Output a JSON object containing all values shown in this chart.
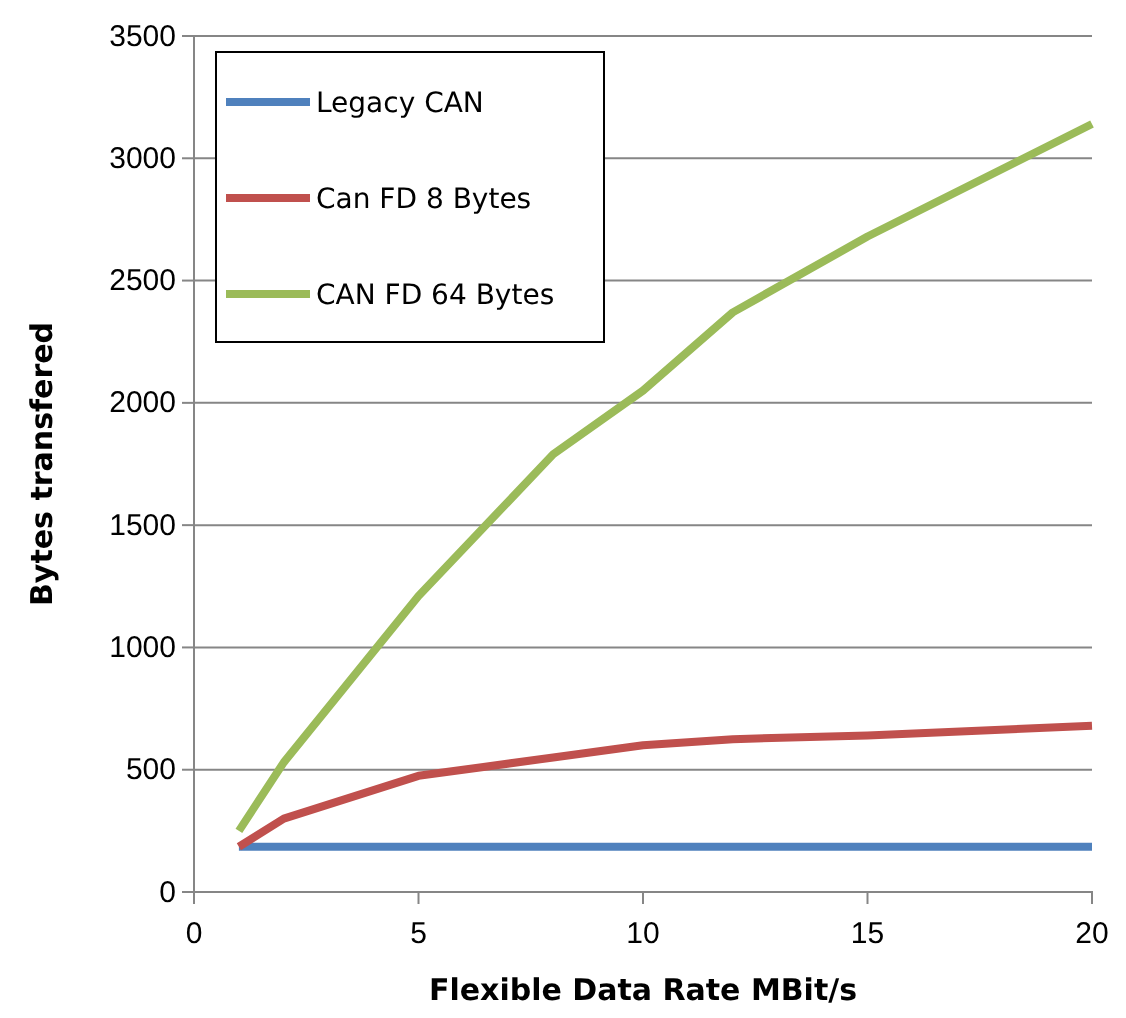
{
  "chart_data": {
    "type": "line",
    "xlabel": "Flexible Data Rate  MBit/s",
    "ylabel": "Bytes transfered",
    "x": [
      1,
      2,
      5,
      8,
      10,
      12,
      15,
      20
    ],
    "series": [
      {
        "name": "Legacy CAN",
        "color": "#4f81bd",
        "values": [
          185,
          185,
          185,
          185,
          185,
          185,
          185,
          185
        ]
      },
      {
        "name": "Can  FD 8 Bytes",
        "color": "#c0504d",
        "values": [
          185,
          300,
          475,
          550,
          600,
          625,
          640,
          680
        ]
      },
      {
        "name": "CAN FD 64 Bytes",
        "color": "#9bbb59",
        "values": [
          250,
          530,
          1210,
          1790,
          2050,
          2370,
          2680,
          3140
        ]
      }
    ],
    "xlim": [
      0,
      20
    ],
    "xticks": [
      0,
      5,
      10,
      15,
      20
    ],
    "ylim": [
      0,
      3500
    ],
    "yticks": [
      0,
      500,
      1000,
      1500,
      2000,
      2500,
      3000,
      3500
    ],
    "grid": "y",
    "legend": "top left",
    "marker": "none",
    "line_style": "solid"
  }
}
